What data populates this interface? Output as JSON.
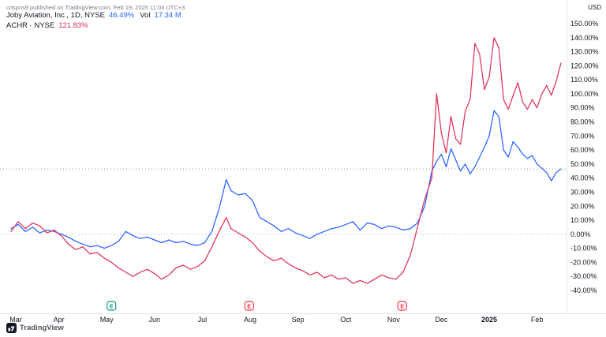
{
  "header": {
    "publish_note": "crispus9 published on TradingView.com, Feb 19, 2025 11:03 UTC+3"
  },
  "legend": {
    "primary": {
      "title": "Joby Aviation, Inc., 1D, NYSE",
      "change": "46.49%",
      "vol_label": "Vol",
      "vol_value": "17.34 M",
      "color": "#2962ff"
    },
    "compare": {
      "title": "ACHR · NYSE",
      "change": "121.83%",
      "color": "#e0315a"
    }
  },
  "axis": {
    "currency": "USD"
  },
  "footer": {
    "brand": "TradingView"
  },
  "chart_data": {
    "type": "line",
    "title": "Joby Aviation (JOBY) vs Archer Aviation (ACHR) — cumulative % change, 1D, NYSE, Mar 2024 – Feb 2025",
    "ylabel": "% change",
    "ylim": [
      -48,
      157
    ],
    "grid": false,
    "legend_position": "top-left",
    "x_unit": "months since 2024-03-01",
    "x": [
      0,
      0.15,
      0.3,
      0.45,
      0.6,
      0.75,
      0.9,
      1.05,
      1.2,
      1.35,
      1.5,
      1.65,
      1.8,
      1.95,
      2.1,
      2.25,
      2.4,
      2.55,
      2.7,
      2.85,
      3.0,
      3.15,
      3.3,
      3.45,
      3.6,
      3.75,
      3.9,
      4.05,
      4.2,
      4.35,
      4.5,
      4.6,
      4.75,
      4.9,
      5.05,
      5.2,
      5.35,
      5.5,
      5.65,
      5.8,
      5.95,
      6.1,
      6.25,
      6.4,
      6.55,
      6.7,
      6.85,
      7.0,
      7.15,
      7.3,
      7.45,
      7.6,
      7.75,
      7.9,
      8.05,
      8.2,
      8.35,
      8.5,
      8.65,
      8.8,
      8.9,
      9.0,
      9.1,
      9.2,
      9.3,
      9.4,
      9.5,
      9.6,
      9.7,
      9.8,
      9.9,
      10.0,
      10.1,
      10.2,
      10.3,
      10.4,
      10.5,
      10.6,
      10.7,
      10.8,
      10.9,
      11.0,
      11.1,
      11.2,
      11.3,
      11.4,
      11.5
    ],
    "series": [
      {
        "name": "JOBY",
        "color": "#2962ff",
        "last": 46.49,
        "values": [
          4,
          7,
          2,
          5,
          1,
          3,
          2,
          0,
          -2,
          -5,
          -7,
          -9,
          -8,
          -10,
          -8,
          -5,
          2,
          -1,
          -3,
          -2,
          -4,
          -6,
          -4,
          -6,
          -5,
          -7,
          -8,
          -6,
          2,
          18,
          39,
          31,
          28,
          29,
          24,
          12,
          9,
          6,
          2,
          4,
          1,
          -1,
          -3,
          0,
          2,
          4,
          5,
          7,
          9,
          3,
          8,
          7,
          4,
          6,
          5,
          3,
          4,
          8,
          20,
          45,
          52,
          57,
          48,
          61,
          53,
          45,
          50,
          43,
          48,
          55,
          62,
          70,
          88,
          84,
          60,
          55,
          66,
          62,
          57,
          54,
          56,
          50,
          47,
          44,
          38,
          44,
          46.49
        ]
      },
      {
        "name": "ACHR",
        "color": "#e0315a",
        "last": 121.83,
        "values": [
          2,
          9,
          4,
          8,
          6,
          1,
          3,
          -1,
          -7,
          -11,
          -9,
          -14,
          -13,
          -17,
          -20,
          -24,
          -27,
          -30,
          -27,
          -25,
          -28,
          -32,
          -29,
          -24,
          -22,
          -25,
          -23,
          -19,
          -9,
          2,
          12,
          4,
          1,
          -2,
          -6,
          -12,
          -16,
          -19,
          -17,
          -21,
          -24,
          -26,
          -29,
          -27,
          -31,
          -29,
          -32,
          -31,
          -35,
          -33,
          -35,
          -32,
          -29,
          -31,
          -32,
          -27,
          -15,
          5,
          25,
          40,
          100,
          72,
          58,
          84,
          68,
          64,
          88,
          96,
          136,
          128,
          103,
          112,
          140,
          133,
          96,
          89,
          99,
          108,
          94,
          89,
          96,
          90,
          100,
          106,
          99,
          109,
          121.83
        ]
      }
    ],
    "y_ticks_percent": [
      150,
      140,
      130,
      120,
      110,
      100,
      90,
      80,
      70,
      60,
      50,
      40,
      30,
      20,
      10,
      0,
      -10,
      -20,
      -30,
      -40
    ],
    "x_tick_labels": [
      {
        "label": "Mar",
        "m": 0.1
      },
      {
        "label": "Apr",
        "m": 1
      },
      {
        "label": "May",
        "m": 2
      },
      {
        "label": "Jun",
        "m": 3
      },
      {
        "label": "Jul",
        "m": 4
      },
      {
        "label": "Aug",
        "m": 5
      },
      {
        "label": "Sep",
        "m": 6
      },
      {
        "label": "Oct",
        "m": 7
      },
      {
        "label": "Nov",
        "m": 8
      },
      {
        "label": "Dec",
        "m": 9
      },
      {
        "label": "2025",
        "m": 10,
        "bold": true
      },
      {
        "label": "Feb",
        "m": 11
      }
    ],
    "reference_lines": [
      {
        "value": 0.0,
        "style": "dotted",
        "color": "#b2b5be"
      },
      {
        "value": 46.49,
        "style": "dotted",
        "color": "#9598a1"
      }
    ],
    "event_markers": [
      {
        "m": 2.1,
        "label": "E",
        "color": "#089981"
      },
      {
        "m": 4.98,
        "label": "E",
        "color": "#f23645"
      },
      {
        "m": 8.18,
        "label": "E",
        "color": "#f23645"
      }
    ]
  }
}
